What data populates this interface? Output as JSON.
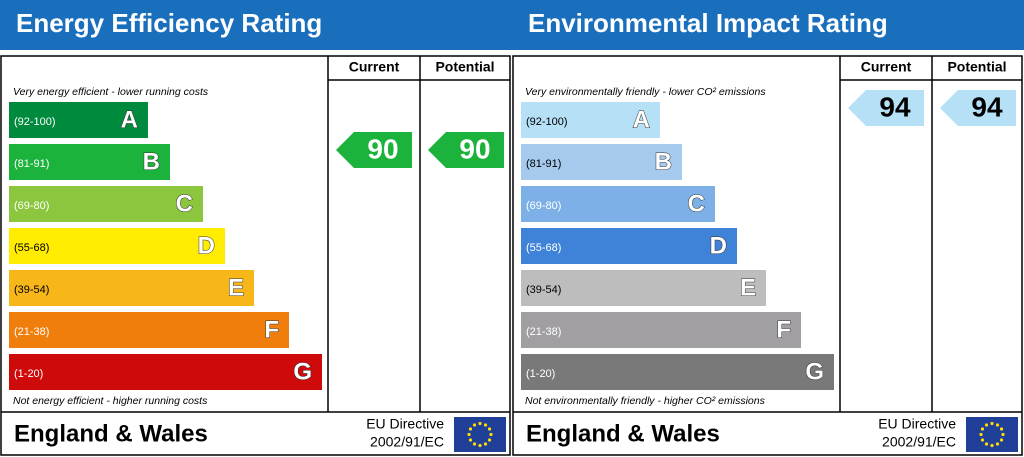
{
  "panels": [
    {
      "title": "Energy Efficiency Rating",
      "headers": [
        "Current",
        "Potential"
      ],
      "top_note": "Very energy efficient - lower running costs",
      "bottom_note": "Not energy efficient - higher running costs",
      "bands": [
        {
          "range": "(92-100)",
          "letter": "A",
          "color": "#008a3e",
          "text_color": "#ffffff"
        },
        {
          "range": "(81-91)",
          "letter": "B",
          "color": "#1cb33c",
          "text_color": "#ffffff"
        },
        {
          "range": "(69-80)",
          "letter": "C",
          "color": "#8cc63e",
          "text_color": "#ffffff"
        },
        {
          "range": "(55-68)",
          "letter": "D",
          "color": "#ffec00",
          "text_color": "#000000"
        },
        {
          "range": "(39-54)",
          "letter": "E",
          "color": "#f7b718",
          "text_color": "#000000"
        },
        {
          "range": "(21-38)",
          "letter": "F",
          "color": "#f07e0c",
          "text_color": "#ffffff"
        },
        {
          "range": "(1-20)",
          "letter": "G",
          "color": "#cf0a0a",
          "text_color": "#ffffff"
        }
      ],
      "current": 90,
      "potential": 90,
      "footer": {
        "region": "England & Wales",
        "directive": [
          "EU Directive",
          "2002/91/EC"
        ]
      }
    },
    {
      "title": "Environmental Impact Rating",
      "headers": [
        "Current",
        "Potential"
      ],
      "top_note": "Very environmentally friendly - lower CO² emissions",
      "bottom_note": "Not environmentally friendly - higher CO² emissions",
      "bands": [
        {
          "range": "(92-100)",
          "letter": "A",
          "color": "#b6e0f6",
          "text_color": "#000000"
        },
        {
          "range": "(81-91)",
          "letter": "B",
          "color": "#a6caee",
          "text_color": "#000000"
        },
        {
          "range": "(69-80)",
          "letter": "C",
          "color": "#7cb0e6",
          "text_color": "#ffffff"
        },
        {
          "range": "(55-68)",
          "letter": "D",
          "color": "#3f83d8",
          "text_color": "#ffffff"
        },
        {
          "range": "(39-54)",
          "letter": "E",
          "color": "#bdbdbd",
          "text_color": "#000000"
        },
        {
          "range": "(21-38)",
          "letter": "F",
          "color": "#a19fa2",
          "text_color": "#ffffff"
        },
        {
          "range": "(1-20)",
          "letter": "G",
          "color": "#797979",
          "text_color": "#ffffff"
        }
      ],
      "current": 94,
      "potential": 94,
      "footer": {
        "region": "England & Wales",
        "directive": [
          "EU Directive",
          "2002/91/EC"
        ]
      }
    }
  ]
}
